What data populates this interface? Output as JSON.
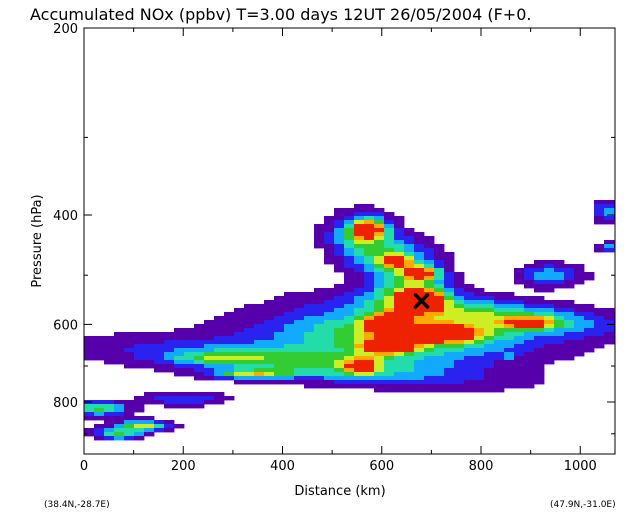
{
  "chart_data": {
    "type": "heatmap",
    "title": "Accumulated NOx  (ppbv)   T=3.00 days  12UT 26/05/2004  (F+0.",
    "xlabel": "Distance  (km)",
    "ylabel": "Pressure  (hPa)",
    "x_ticks": [
      "0",
      "200",
      "400",
      "600",
      "800",
      "1000"
    ],
    "y_ticks": [
      "200",
      "400",
      "600",
      "800"
    ],
    "xlim": [
      0,
      1070
    ],
    "ylim_pressure": [
      970,
      200
    ],
    "y_scale": "log",
    "start_label": "(38.4N,-28.7E)",
    "end_label": "(47.9N,-31.0E)",
    "marker": {
      "symbol": "X",
      "distance_km": 680,
      "pressure_hPa": 550
    },
    "colors": [
      "#5500aa",
      "#2a22ee",
      "#11aaff",
      "#22ddaa",
      "#33cc33",
      "#ccee22",
      "#ffaa00",
      "#ee2200"
    ],
    "plumes": [
      {
        "x": 440,
        "p": 695,
        "sx": 260,
        "sy": 28,
        "a": 0.55,
        "rot": -0.38
      },
      {
        "x": 640,
        "p": 625,
        "sx": 190,
        "sy": 40,
        "a": 0.7,
        "rot": -0.25
      },
      {
        "x": 820,
        "p": 580,
        "sx": 190,
        "sy": 22,
        "a": 0.5,
        "rot": -0.35
      },
      {
        "x": 560,
        "p": 430,
        "sx": 45,
        "sy": 22,
        "a": 0.6,
        "rot": 0
      },
      {
        "x": 620,
        "p": 470,
        "sx": 60,
        "sy": 22,
        "a": 0.55,
        "rot": 0
      },
      {
        "x": 660,
        "p": 530,
        "sx": 55,
        "sy": 25,
        "a": 0.6,
        "rot": 0
      },
      {
        "x": 575,
        "p": 421,
        "sx": 22,
        "sy": 10,
        "a": 0.75,
        "rot": 0
      },
      {
        "x": 630,
        "p": 476,
        "sx": 20,
        "sy": 9,
        "a": 0.6,
        "rot": 0
      },
      {
        "x": 680,
        "p": 497,
        "sx": 25,
        "sy": 9,
        "a": 0.85,
        "rot": 0
      },
      {
        "x": 680,
        "p": 550,
        "sx": 30,
        "sy": 14,
        "a": 0.95,
        "rot": 0
      },
      {
        "x": 615,
        "p": 598,
        "sx": 30,
        "sy": 14,
        "a": 1.05,
        "rot": 0
      },
      {
        "x": 712,
        "p": 622,
        "sx": 55,
        "sy": 12,
        "a": 1.05,
        "rot": 0
      },
      {
        "x": 615,
        "p": 650,
        "sx": 35,
        "sy": 13,
        "a": 1.0,
        "rot": 0
      },
      {
        "x": 560,
        "p": 700,
        "sx": 22,
        "sy": 15,
        "a": 0.8,
        "rot": 0
      },
      {
        "x": 900,
        "p": 597,
        "sx": 35,
        "sy": 10,
        "a": 0.6,
        "rot": 0
      },
      {
        "x": 940,
        "p": 500,
        "sx": 45,
        "sy": 15,
        "a": 0.4,
        "rot": 0
      },
      {
        "x": 340,
        "p": 722,
        "sx": 55,
        "sy": 8,
        "a": 0.55,
        "rot": 0
      },
      {
        "x": 270,
        "p": 680,
        "sx": 60,
        "sy": 10,
        "a": 0.3,
        "rot": 0
      },
      {
        "x": 120,
        "p": 873,
        "sx": 35,
        "sy": 12,
        "a": 0.7,
        "rot": 0
      },
      {
        "x": 30,
        "p": 820,
        "sx": 40,
        "sy": 15,
        "a": 0.6,
        "rot": 0
      },
      {
        "x": 70,
        "p": 900,
        "sx": 35,
        "sy": 14,
        "a": 0.55,
        "rot": 0
      },
      {
        "x": 200,
        "p": 790,
        "sx": 60,
        "sy": 15,
        "a": 0.3,
        "rot": 0
      },
      {
        "x": 1055,
        "p": 395,
        "sx": 20,
        "sy": 10,
        "a": 0.45,
        "rot": 0
      },
      {
        "x": 1055,
        "p": 450,
        "sx": 15,
        "sy": 6,
        "a": 0.35,
        "rot": 0
      },
      {
        "x": 850,
        "p": 675,
        "sx": 8,
        "sy": 5,
        "a": 0.3,
        "rot": 0
      }
    ]
  }
}
